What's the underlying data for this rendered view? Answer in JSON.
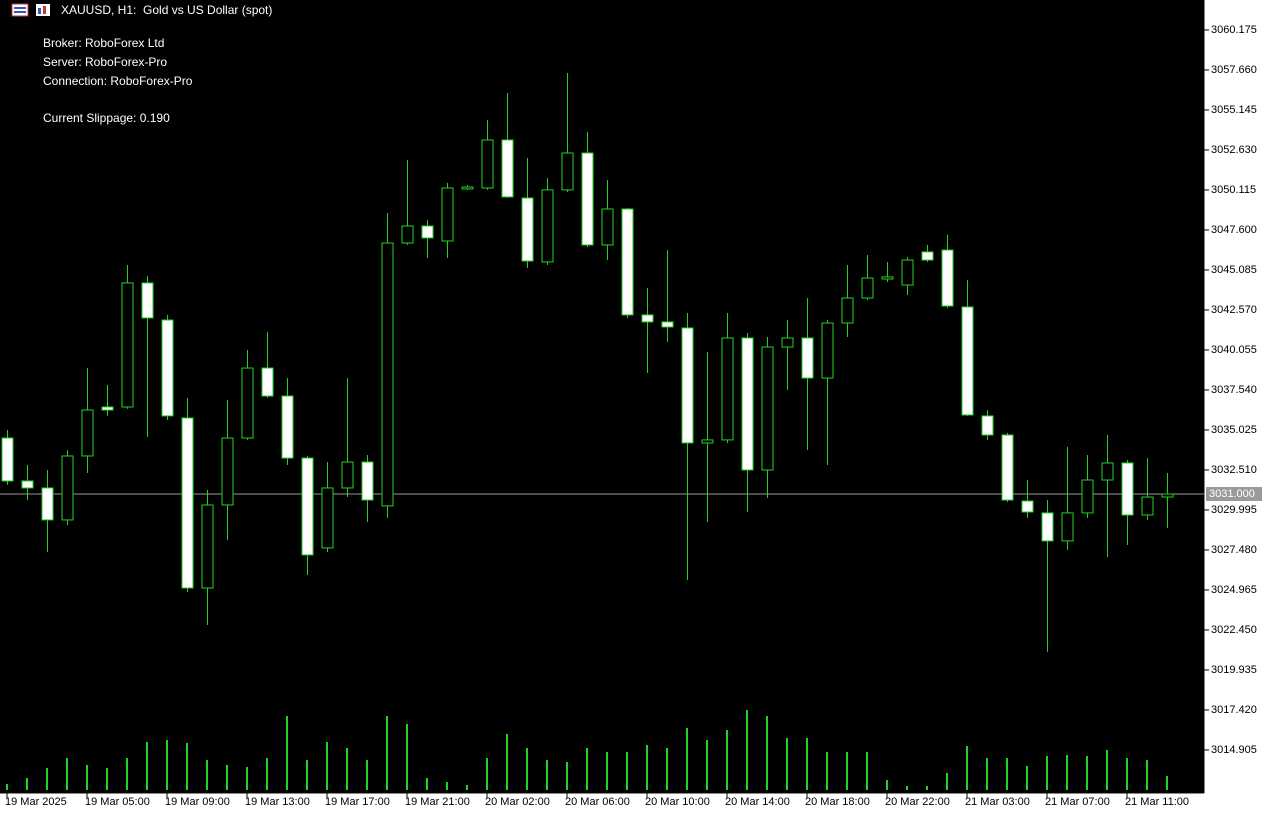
{
  "header": {
    "title": "XAUUSD, H1:  Gold vs US Dollar (spot)"
  },
  "info": [
    "Broker: RoboForex Ltd",
    "Server: RoboForex-Pro",
    "Connection: RoboForex-Pro",
    "Current Slippage: 0.190"
  ],
  "chart_data": {
    "type": "candlestick",
    "categories": [
      "19 Mar 2025",
      null,
      null,
      null,
      "19 Mar 05:00",
      null,
      null,
      null,
      "19 Mar 09:00",
      null,
      null,
      null,
      "19 Mar 13:00",
      null,
      null,
      null,
      "19 Mar 17:00",
      null,
      null,
      null,
      "19 Mar 21:00",
      null,
      null,
      null,
      "20 Mar 02:00",
      null,
      null,
      null,
      "20 Mar 06:00",
      null,
      null,
      null,
      "20 Mar 10:00",
      null,
      null,
      null,
      "20 Mar 14:00",
      null,
      null,
      null,
      "20 Mar 18:00",
      null,
      null,
      null,
      "20 Mar 22:00",
      null,
      null,
      null,
      "21 Mar 03:00",
      null,
      null,
      null,
      "21 Mar 07:00",
      null,
      null,
      null,
      "21 Mar 11:00",
      null,
      null
    ],
    "open": [
      3034.52,
      3031.82,
      3031.38,
      3029.37,
      3033.39,
      3036.47,
      3036.47,
      3044.27,
      3041.94,
      3035.78,
      3025.09,
      3030.31,
      3034.52,
      3038.92,
      3037.16,
      3033.26,
      3027.61,
      3031.38,
      3033.01,
      3030.25,
      3046.78,
      3047.85,
      3046.91,
      3050.18,
      3050.24,
      3053.26,
      3049.61,
      3045.59,
      3050.12,
      3052.44,
      3046.66,
      3048.92,
      3042.26,
      3041.82,
      3041.44,
      3034.21,
      3034.4,
      3040.81,
      3032.51,
      3040.24,
      3040.81,
      3038.29,
      3041.75,
      3043.32,
      3044.52,
      3044.14,
      3046.22,
      3046.34,
      3042.76,
      3035.91,
      3034.71,
      3030.56,
      3029.81,
      3028.05,
      3029.81,
      3031.88,
      3032.95,
      3029.68,
      3030.81
    ],
    "high": [
      3035.03,
      3032.82,
      3032.51,
      3033.77,
      3038.92,
      3037.85,
      3045.4,
      3044.71,
      3042.26,
      3037.04,
      3031.25,
      3036.91,
      3040.06,
      3041.19,
      3038.29,
      3033.39,
      3033.01,
      3038.29,
      3033.45,
      3048.67,
      3052.0,
      3048.23,
      3050.56,
      3050.43,
      3054.52,
      3056.21,
      3052.13,
      3050.87,
      3057.47,
      3053.76,
      3050.74,
      3048.98,
      3043.95,
      3046.34,
      3042.38,
      3039.93,
      3042.38,
      3041.12,
      3040.87,
      3041.94,
      3043.32,
      3041.94,
      3045.4,
      3046.03,
      3045.59,
      3045.9,
      3046.66,
      3047.29,
      3044.46,
      3036.28,
      3034.84,
      3031.88,
      3030.62,
      3033.96,
      3033.45,
      3034.71,
      3033.14,
      3033.26,
      3032.32
    ],
    "low": [
      3031.57,
      3030.62,
      3027.35,
      3029.05,
      3032.32,
      3035.91,
      3036.35,
      3034.59,
      3035.65,
      3024.84,
      3022.76,
      3028.11,
      3034.4,
      3037.04,
      3032.82,
      3025.91,
      3027.35,
      3030.81,
      3029.24,
      3029.49,
      3046.66,
      3045.84,
      3045.84,
      3050.12,
      3050.12,
      3049.61,
      3045.21,
      3045.4,
      3049.99,
      3046.53,
      3045.71,
      3042.07,
      3038.61,
      3040.56,
      3025.59,
      3029.24,
      3034.21,
      3029.87,
      3030.75,
      3037.54,
      3033.77,
      3032.82,
      3040.87,
      3043.2,
      3044.33,
      3043.51,
      3045.59,
      3042.7,
      3035.91,
      3034.4,
      3030.5,
      3029.49,
      3021.07,
      3027.48,
      3029.49,
      3027.04,
      3027.79,
      3029.37,
      3028.86
    ],
    "close": [
      3031.82,
      3031.38,
      3029.37,
      3033.39,
      3036.28,
      3036.28,
      3044.27,
      3042.07,
      3035.91,
      3025.09,
      3030.31,
      3034.52,
      3038.92,
      3037.16,
      3033.26,
      3027.17,
      3031.38,
      3033.01,
      3030.62,
      3046.78,
      3047.85,
      3047.1,
      3050.24,
      3050.3,
      3053.26,
      3049.68,
      3045.65,
      3050.12,
      3052.44,
      3046.66,
      3048.92,
      3042.26,
      3041.82,
      3041.5,
      3034.21,
      3034.4,
      3040.81,
      3032.51,
      3040.24,
      3040.81,
      3038.29,
      3041.75,
      3043.32,
      3044.58,
      3044.65,
      3045.71,
      3045.71,
      3042.82,
      3035.97,
      3034.71,
      3030.62,
      3029.87,
      3028.05,
      3029.81,
      3031.88,
      3032.95,
      3029.68,
      3030.81,
      3031.0
    ],
    "volume": [
      6,
      12,
      22,
      32,
      25,
      22,
      32,
      48,
      50,
      47,
      30,
      25,
      23,
      32,
      74,
      30,
      48,
      42,
      30,
      74,
      66,
      12,
      8,
      5,
      32,
      56,
      42,
      30,
      28,
      42,
      38,
      38,
      45,
      42,
      62,
      50,
      60,
      80,
      74,
      52,
      52,
      38,
      38,
      38,
      10,
      4,
      4,
      17,
      44,
      32,
      32,
      24,
      34,
      35,
      34,
      40,
      32,
      30,
      14
    ],
    "up_color": "#22d322",
    "down_color": "#ffffff",
    "volume_color": "#22d322",
    "ylim": [
      3012.2,
      3062.06
    ],
    "yticks": [
      3060.175,
      {
        "value": 3057.66,
        "label": "3057.660"
      },
      3055.145,
      {
        "value": 3052.63,
        "label": "3052.630"
      },
      3050.115,
      {
        "value": 3047.6,
        "label": "3047.600"
      },
      3045.085,
      {
        "value": 3042.57,
        "label": "3042.570"
      },
      3040.055,
      {
        "value": 3037.54,
        "label": "3037.540"
      },
      3035.025,
      {
        "value": 3032.51,
        "label": "3032.510"
      },
      3029.995,
      {
        "value": 3027.48,
        "label": "3027.480"
      },
      3024.965,
      {
        "value": 3022.45,
        "label": "3022.450"
      },
      3019.935,
      {
        "value": 3017.42,
        "label": "3017.420"
      },
      3014.905
    ],
    "current_price": {
      "value": 3031,
      "label": "3031.000"
    },
    "current_price_color": "#9a9a9a"
  }
}
